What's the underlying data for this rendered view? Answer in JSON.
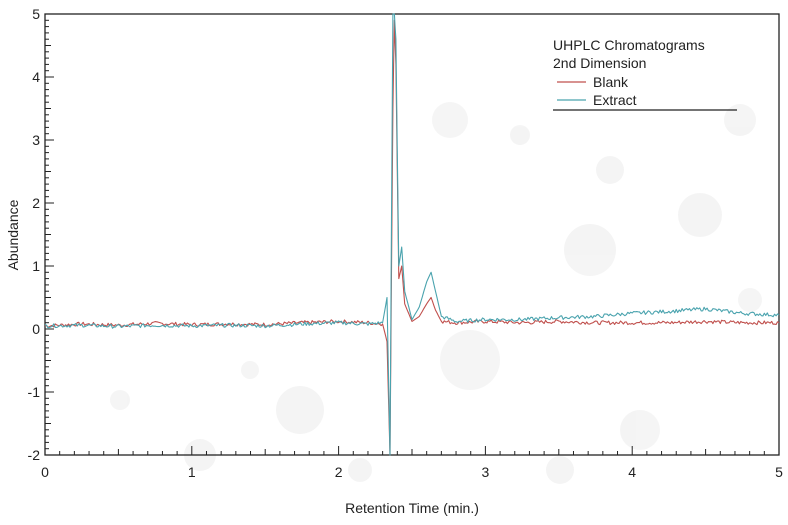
{
  "chart_data": {
    "type": "line",
    "title": "",
    "legend": {
      "title_lines": [
        "UHPLC Chromatograms",
        "2nd Dimension"
      ],
      "placement": "top-right",
      "entries": [
        "Blank",
        "Extract"
      ]
    },
    "xlabel": "Retention Time (min.)",
    "ylabel": "Abundance",
    "xlim": [
      0,
      5
    ],
    "ylim": [
      -2,
      5
    ],
    "xticks": [
      "0",
      "1",
      "2",
      "3",
      "4",
      "5"
    ],
    "yticks": [
      "-2",
      "-1",
      "0",
      "1",
      "2",
      "3",
      "4",
      "5"
    ],
    "grid": false,
    "series": [
      {
        "name": "Blank",
        "color": "#c0504d",
        "x": [
          0.0,
          0.25,
          0.5,
          0.75,
          1.0,
          1.25,
          1.5,
          1.75,
          2.0,
          2.2,
          2.3,
          2.33,
          2.35,
          2.37,
          2.38,
          2.39,
          2.41,
          2.43,
          2.45,
          2.5,
          2.55,
          2.6,
          2.63,
          2.66,
          2.7,
          2.8,
          3.0,
          3.25,
          3.5,
          3.75,
          4.0,
          4.25,
          4.5,
          4.75,
          5.0
        ],
        "y": [
          0.05,
          0.08,
          0.06,
          0.09,
          0.07,
          0.08,
          0.07,
          0.1,
          0.12,
          0.1,
          0.08,
          -0.2,
          -2.0,
          3.5,
          4.9,
          4.2,
          0.8,
          1.0,
          0.4,
          0.12,
          0.2,
          0.4,
          0.5,
          0.3,
          0.12,
          0.1,
          0.12,
          0.1,
          0.12,
          0.1,
          0.1,
          0.1,
          0.12,
          0.1,
          0.1
        ]
      },
      {
        "name": "Extract",
        "color": "#4aa3ae",
        "x": [
          0.0,
          0.25,
          0.5,
          0.75,
          1.0,
          1.25,
          1.5,
          1.75,
          2.0,
          2.2,
          2.3,
          2.33,
          2.35,
          2.37,
          2.38,
          2.39,
          2.41,
          2.43,
          2.45,
          2.5,
          2.55,
          2.6,
          2.63,
          2.66,
          2.7,
          2.8,
          3.0,
          3.25,
          3.5,
          3.75,
          4.0,
          4.25,
          4.5,
          4.75,
          5.0
        ],
        "y": [
          0.05,
          0.06,
          0.04,
          0.06,
          0.05,
          0.06,
          0.05,
          0.08,
          0.1,
          0.08,
          0.1,
          0.5,
          -2.0,
          5.0,
          5.0,
          4.6,
          1.0,
          1.3,
          0.6,
          0.15,
          0.35,
          0.75,
          0.9,
          0.6,
          0.2,
          0.12,
          0.15,
          0.15,
          0.18,
          0.2,
          0.25,
          0.28,
          0.32,
          0.25,
          0.22
        ]
      }
    ]
  }
}
